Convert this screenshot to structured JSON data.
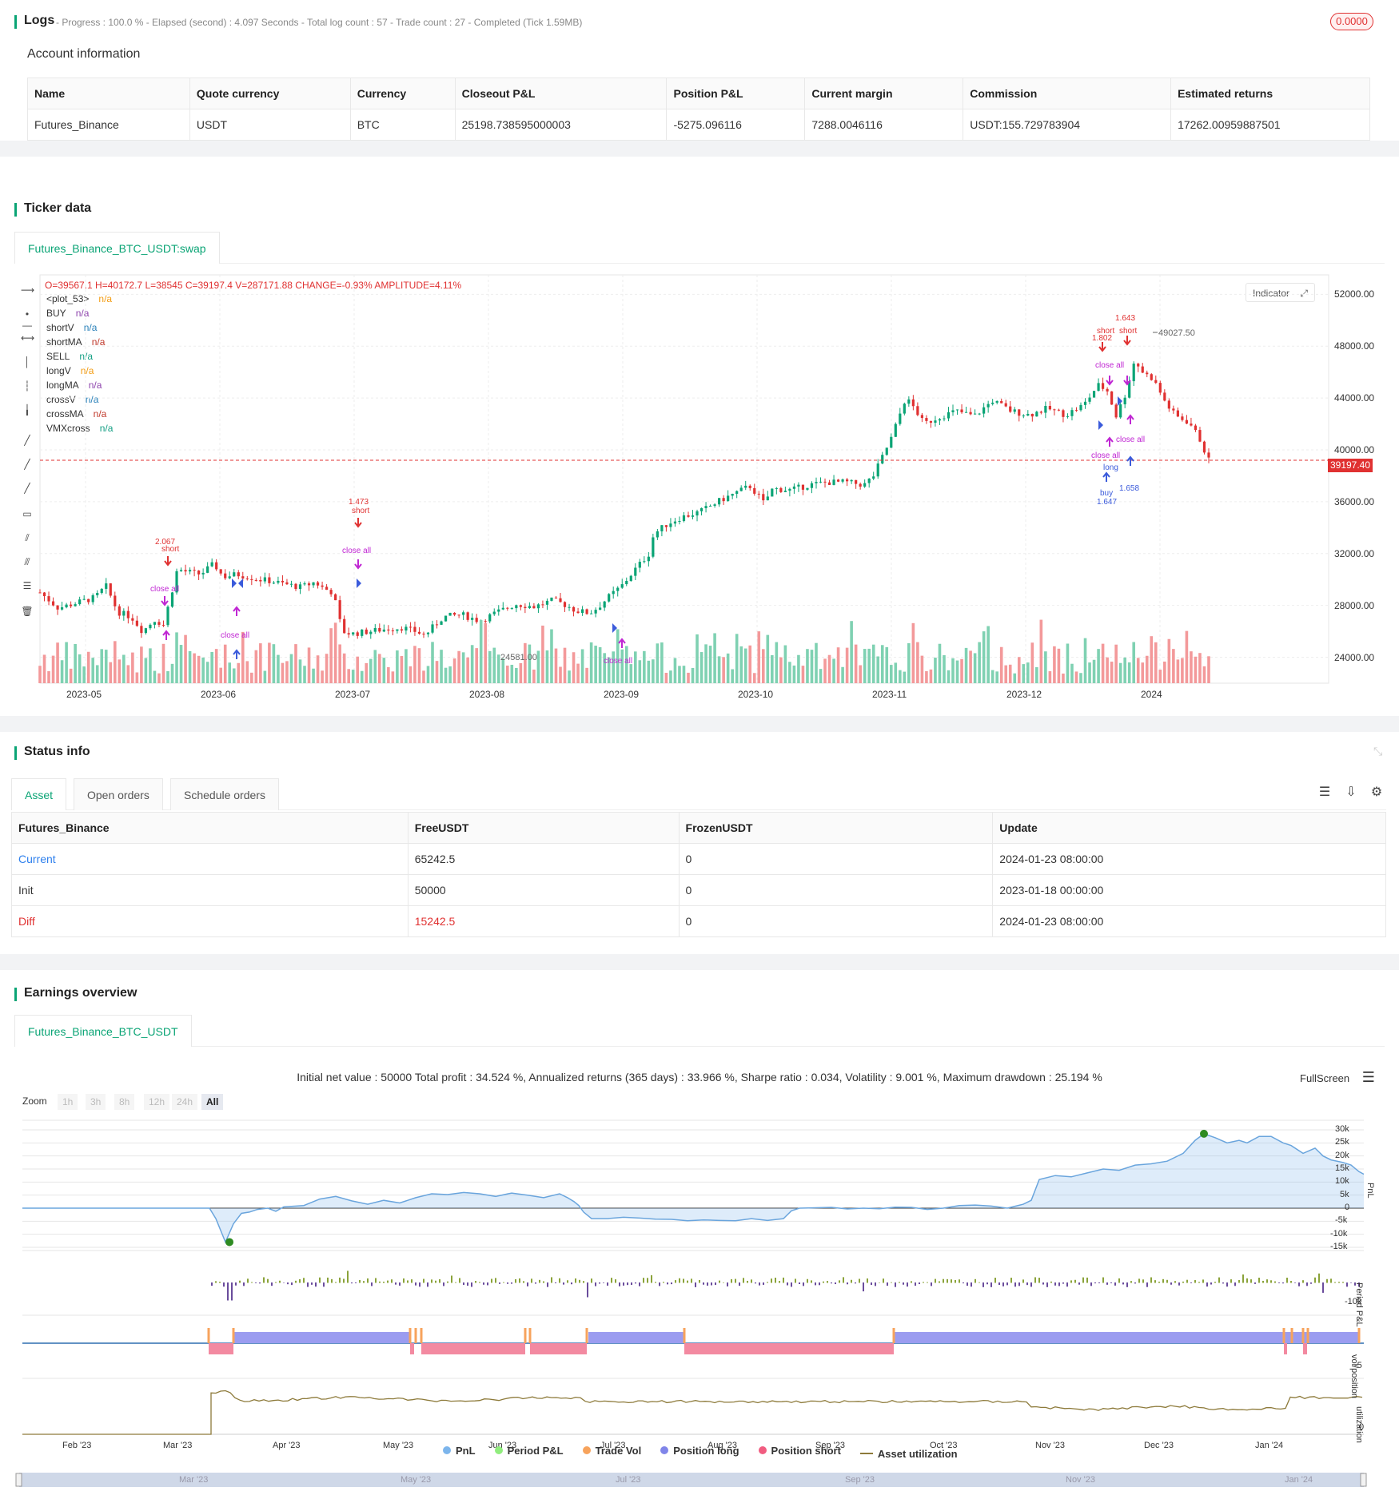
{
  "logs": {
    "title": "Logs",
    "summary": "- Progress : 100.0 % - Elapsed (second) : 4.097  Seconds - Total log count : 57 - Trade count : 27 - Completed (Tick 1.59MB)",
    "badge": "0.0000"
  },
  "account": {
    "heading": "Account information",
    "columns": [
      "Name",
      "Quote currency",
      "Currency",
      "Closeout P&L",
      "Position P&L",
      "Current margin",
      "Commission",
      "Estimated returns"
    ],
    "row": [
      "Futures_Binance",
      "USDT",
      "BTC",
      "25198.738595000003",
      "-5275.096116",
      "7288.0046116",
      "USDT:155.729783904",
      "17262.00959887501"
    ]
  },
  "ticker": {
    "heading": "Ticker data",
    "tab": "Futures_Binance_BTC_USDT:swap",
    "ohlc": "O=39567.1 H=40172.7 L=38545 C=39197.4 V=287171.88 CHANGE=-0.93% AMPLITUDE=4.11%",
    "indicator_btn": "Indicator",
    "legend": [
      {
        "name": "<plot_53>",
        "value": "n/a",
        "color": "#f39c12"
      },
      {
        "name": "BUY",
        "value": "n/a",
        "color": "#8e44ad"
      },
      {
        "name": "shortV",
        "value": "n/a",
        "color": "#2980b9"
      },
      {
        "name": "shortMA",
        "value": "n/a",
        "color": "#c0392b"
      },
      {
        "name": "SELL",
        "value": "n/a",
        "color": "#16a085"
      },
      {
        "name": "longV",
        "value": "n/a",
        "color": "#f39c12"
      },
      {
        "name": "longMA",
        "value": "n/a",
        "color": "#8e44ad"
      },
      {
        "name": "crossV",
        "value": "n/a",
        "color": "#2980b9"
      },
      {
        "name": "crossMA",
        "value": "n/a",
        "color": "#c0392b"
      },
      {
        "name": "VMXcross",
        "value": "n/a",
        "color": "#16a085"
      }
    ],
    "y_ticks": [
      "52000.00",
      "48000.00",
      "44000.00",
      "40000.00",
      "36000.00",
      "32000.00",
      "28000.00",
      "24000.00"
    ],
    "x_ticks": [
      "2023-05",
      "2023-06",
      "2023-07",
      "2023-08",
      "2023-09",
      "2023-10",
      "2023-11",
      "2023-12",
      "2024"
    ],
    "last_price": "39197.40",
    "high_mark": "49027.50",
    "low_mark": "24581.00",
    "annotations": [
      {
        "text": "2.067",
        "color": "#e03131"
      },
      {
        "text": "short",
        "color": "#e03131"
      },
      {
        "text": "1.473",
        "color": "#e03131"
      },
      {
        "text": "close all",
        "color": "#c026d3"
      },
      {
        "text": "1.643",
        "color": "#e03131"
      },
      {
        "text": "1.802",
        "color": "#e03131"
      },
      {
        "text": "buy",
        "color": "#3b5bdb"
      },
      {
        "text": "1.647",
        "color": "#3b5bdb"
      },
      {
        "text": "long",
        "color": "#3b5bdb"
      },
      {
        "text": "1.658",
        "color": "#3b5bdb"
      }
    ]
  },
  "status": {
    "heading": "Status info",
    "tabs": [
      "Asset",
      "Open orders",
      "Schedule orders"
    ],
    "columns": [
      "Futures_Binance",
      "FreeUSDT",
      "FrozenUSDT",
      "Update"
    ],
    "rows": [
      {
        "label": "Current",
        "free": "65242.5",
        "frozen": "0",
        "update": "2024-01-23 08:00:00",
        "color": "#2f80ed"
      },
      {
        "label": "Init",
        "free": "50000",
        "frozen": "0",
        "update": "2023-01-18 00:00:00",
        "color": "#333333"
      },
      {
        "label": "Diff",
        "free": "15242.5",
        "frozen": "0",
        "update": "2024-01-23 08:00:00",
        "color": "#e03131"
      }
    ]
  },
  "earnings": {
    "heading": "Earnings overview",
    "tab": "Futures_Binance_BTC_USDT",
    "summary": "Initial net value : 50000  Total profit : 34.524 %, Annualized returns (365 days) : 33.966 %, Sharpe ratio : 0.034, Volatility : 9.001 %, Maximum drawdown : 25.194 %",
    "fullscreen": "FullScreen",
    "zoom_label": "Zoom",
    "zoom_options": [
      "1h",
      "3h",
      "8h",
      "12h",
      "24h",
      "All"
    ],
    "pnl_ticks": [
      "30k",
      "25k",
      "20k",
      "15k",
      "10k",
      "5k",
      "0",
      "-5k",
      "-10k",
      "-15k"
    ],
    "period_tick": "-10k",
    "pos_tick": "-5",
    "util_tick": "0",
    "axis_names": [
      "PnL",
      "Period P&L",
      "vol/position",
      "utilization"
    ],
    "x_ticks": [
      "Feb '23",
      "Mar '23",
      "Apr '23",
      "May '23",
      "Jun '23",
      "Jul '23",
      "Aug '23",
      "Sep '23",
      "Oct '23",
      "Nov '23",
      "Dec '23",
      "Jan '24"
    ],
    "nav_ticks": [
      "Mar '23",
      "May '23",
      "Jul '23",
      "Sep '23",
      "Nov '23",
      "Jan '24"
    ],
    "legend": [
      {
        "name": "PnL",
        "color": "#7cb5ec"
      },
      {
        "name": "Period P&L",
        "color": "#90ed7d"
      },
      {
        "name": "Trade Vol",
        "color": "#f7a35c"
      },
      {
        "name": "Position long",
        "color": "#8085e9"
      },
      {
        "name": "Position short",
        "color": "#f15c80"
      },
      {
        "name": "Asset utilization",
        "color": "#8d7a3a"
      }
    ]
  }
}
